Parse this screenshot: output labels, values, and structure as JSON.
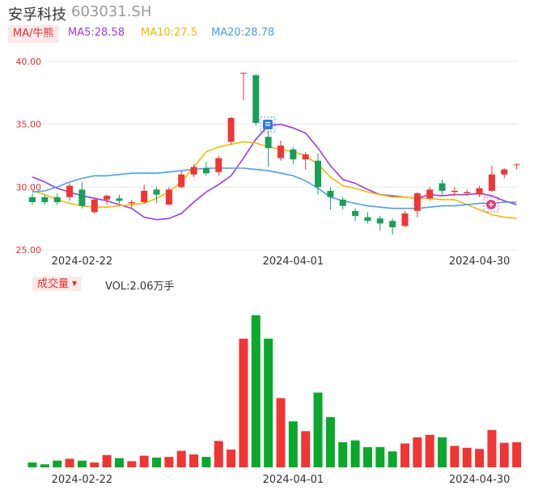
{
  "header": {
    "name": "安孚科技",
    "code": "603031.SH"
  },
  "ma_bar": {
    "selector_label": "MA/牛熊",
    "items": [
      {
        "label": "MA5:28.58",
        "color": "#9b3de0"
      },
      {
        "label": "MA10:27.5",
        "color": "#f5b800"
      },
      {
        "label": "MA20:28.78",
        "color": "#4a9ef0"
      }
    ]
  },
  "volume_bar": {
    "selector_label": "成交量",
    "vol_label": "VOL:2.06万手"
  },
  "colors": {
    "up": "#f03535",
    "down": "#1a9e5a",
    "vol_down": "#0aa82b",
    "grid": "#e8e8e8"
  },
  "chart_data": {
    "type": "candlestick",
    "y_ticks": [
      "40.00",
      "35.00",
      "30.00",
      "25.00"
    ],
    "ylim": [
      25,
      40
    ],
    "x_tick_labels": [
      "2024-02-22",
      "2024-04-01",
      "2024-04-30"
    ],
    "x_tick_index": [
      4,
      21,
      36
    ],
    "candles": [
      {
        "o": 29.2,
        "c": 28.8,
        "h": 29.5,
        "l": 28.6
      },
      {
        "o": 29.2,
        "c": 28.8,
        "h": 29.4,
        "l": 28.6
      },
      {
        "o": 29.2,
        "c": 28.8,
        "h": 29.5,
        "l": 28.6
      },
      {
        "o": 29.2,
        "c": 30.1,
        "h": 30.3,
        "l": 28.9
      },
      {
        "o": 29.8,
        "c": 28.5,
        "h": 30.4,
        "l": 28.3
      },
      {
        "o": 28.0,
        "c": 29.0,
        "h": 29.2,
        "l": 27.9
      },
      {
        "o": 29.0,
        "c": 29.3,
        "h": 29.4,
        "l": 28.6
      },
      {
        "o": 29.1,
        "c": 28.9,
        "h": 29.4,
        "l": 28.7
      },
      {
        "o": 28.7,
        "c": 28.8,
        "h": 29.0,
        "l": 28.3
      },
      {
        "o": 28.8,
        "c": 29.7,
        "h": 30.2,
        "l": 28.7
      },
      {
        "o": 29.8,
        "c": 29.4,
        "h": 30.0,
        "l": 28.7
      },
      {
        "o": 28.6,
        "c": 29.8,
        "h": 30.0,
        "l": 28.6
      },
      {
        "o": 30.0,
        "c": 31.0,
        "h": 31.3,
        "l": 29.9
      },
      {
        "o": 31.0,
        "c": 31.6,
        "h": 31.8,
        "l": 30.8
      },
      {
        "o": 31.5,
        "c": 31.1,
        "h": 32.0,
        "l": 30.9
      },
      {
        "o": 31.2,
        "c": 32.3,
        "h": 32.5,
        "l": 30.9
      },
      {
        "o": 33.6,
        "c": 35.5,
        "h": 35.6,
        "l": 33.4
      },
      {
        "o": 39.1,
        "c": 39.1,
        "h": 39.1,
        "l": 36.9
      },
      {
        "o": 38.9,
        "c": 35.1,
        "h": 39.0,
        "l": 34.9
      },
      {
        "o": 34.0,
        "c": 33.1,
        "h": 34.5,
        "l": 31.6
      },
      {
        "o": 32.3,
        "c": 33.3,
        "h": 33.7,
        "l": 32.1
      },
      {
        "o": 33.0,
        "c": 32.2,
        "h": 33.2,
        "l": 31.8
      },
      {
        "o": 32.2,
        "c": 32.6,
        "h": 32.8,
        "l": 31.4
      },
      {
        "o": 32.1,
        "c": 30.0,
        "h": 32.7,
        "l": 29.4
      },
      {
        "o": 29.7,
        "c": 29.2,
        "h": 30.0,
        "l": 28.2
      },
      {
        "o": 29.0,
        "c": 28.5,
        "h": 29.2,
        "l": 28.2
      },
      {
        "o": 28.1,
        "c": 27.7,
        "h": 28.3,
        "l": 27.3
      },
      {
        "o": 27.6,
        "c": 27.3,
        "h": 28.0,
        "l": 27.1
      },
      {
        "o": 27.5,
        "c": 27.1,
        "h": 27.7,
        "l": 26.5
      },
      {
        "o": 27.3,
        "c": 26.8,
        "h": 27.5,
        "l": 26.2
      },
      {
        "o": 26.9,
        "c": 27.9,
        "h": 28.1,
        "l": 26.8
      },
      {
        "o": 28.1,
        "c": 29.5,
        "h": 29.6,
        "l": 27.6
      },
      {
        "o": 29.1,
        "c": 29.8,
        "h": 30.0,
        "l": 28.9
      },
      {
        "o": 30.3,
        "c": 29.7,
        "h": 30.6,
        "l": 29.3
      },
      {
        "o": 29.6,
        "c": 29.7,
        "h": 30.0,
        "l": 29.3
      },
      {
        "o": 29.5,
        "c": 29.6,
        "h": 29.8,
        "l": 29.3
      },
      {
        "o": 29.4,
        "c": 29.9,
        "h": 30.1,
        "l": 29.2
      },
      {
        "o": 29.7,
        "c": 31.0,
        "h": 31.7,
        "l": 29.6
      },
      {
        "o": 31.0,
        "c": 31.4,
        "h": 31.5,
        "l": 30.7
      },
      {
        "o": 31.8,
        "c": 31.8,
        "h": 31.9,
        "l": 31.4
      }
    ],
    "series": [
      {
        "name": "MA5",
        "color": "#9b3de0",
        "values": [
          30.8,
          30.4,
          29.9,
          29.6,
          29.3,
          29.1,
          28.9,
          28.6,
          28.3,
          27.6,
          27.4,
          27.5,
          27.9,
          28.8,
          29.6,
          30.2,
          30.9,
          32.3,
          33.8,
          34.9,
          35.0,
          34.7,
          34.3,
          33.1,
          31.7,
          30.6,
          30.3,
          29.8,
          29.4,
          29.3,
          29.2,
          29.1,
          29.4,
          29.3,
          29.4,
          29.4,
          29.5,
          29.3,
          28.9,
          28.6
        ]
      },
      {
        "name": "MA10",
        "color": "#f5b800",
        "values": [
          29.7,
          29.4,
          29.0,
          28.7,
          28.5,
          28.4,
          28.4,
          28.5,
          28.6,
          28.7,
          29.1,
          29.6,
          30.4,
          31.6,
          32.8,
          33.2,
          33.4,
          33.6,
          33.5,
          33.2,
          33.0,
          32.8,
          32.5,
          31.8,
          30.8,
          30.1,
          29.9,
          29.6,
          29.4,
          29.2,
          29.2,
          29.1,
          29.1,
          29.0,
          29.0,
          28.6,
          28.2,
          27.8,
          27.6,
          27.5
        ]
      },
      {
        "name": "MA20",
        "color": "#4a9ef0",
        "values": [
          29.6,
          29.7,
          30.0,
          30.4,
          30.7,
          30.9,
          30.9,
          31.0,
          31.1,
          31.1,
          31.1,
          31.2,
          31.3,
          31.4,
          31.5,
          31.5,
          31.5,
          31.5,
          31.4,
          31.3,
          31.1,
          30.9,
          30.5,
          29.9,
          29.2,
          28.9,
          28.7,
          28.5,
          28.4,
          28.3,
          28.3,
          28.3,
          28.4,
          28.5,
          28.5,
          28.6,
          28.7,
          28.7,
          28.8,
          28.8
        ]
      }
    ],
    "volume": {
      "max": 210,
      "values": [
        8,
        5,
        11,
        14,
        11,
        8,
        20,
        15,
        10,
        19,
        16,
        17,
        27,
        21,
        17,
        43,
        29,
        210,
        248,
        210,
        113,
        75,
        59,
        122,
        82,
        41,
        44,
        33,
        33,
        26,
        39,
        49,
        53,
        49,
        35,
        32,
        30,
        61,
        40,
        41
      ]
    }
  }
}
